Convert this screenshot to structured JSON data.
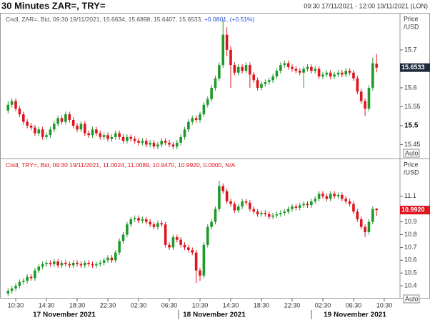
{
  "title": "30 Minutes ZAR=, TRY=",
  "date_range": "09:30 17/11/2021 - 12:00 19/11/2021 (LON)",
  "date_labels": [
    "17 November 2021",
    "18 November 2021",
    "19 November 2021"
  ],
  "chart_data": [
    {
      "type": "candlestick",
      "header": "Cndl, ZAR=, Bid, 09:30 19/11/2021, 15.6634, 15.6898, 15.6407, 15.6533, ",
      "header_change": "+0.0801, (+0.51%)",
      "axis_label": [
        "Price",
        "/USD"
      ],
      "auto_label": "Auto",
      "last_label": "15.6533",
      "up_color": "#1f9a2a",
      "down_color": "#e0141e",
      "tag_color": "#1e2a3c",
      "xlim": [
        8.45,
        60.55
      ],
      "ylim": [
        15.415,
        15.796
      ],
      "yticks": [
        15.45,
        15.5,
        15.55,
        15.6,
        15.7
      ],
      "x": [
        9.5,
        10,
        10.5,
        11,
        11.5,
        12,
        12.5,
        13,
        13.5,
        14,
        14.5,
        15,
        15.5,
        16,
        16.5,
        17,
        17.5,
        18,
        18.5,
        19,
        19.5,
        20,
        20.5,
        21,
        21.5,
        22,
        22.5,
        23,
        23.5,
        24,
        24.5,
        25,
        25.5,
        26,
        26.5,
        27,
        27.5,
        28,
        28.5,
        29,
        29.5,
        30,
        30.5,
        31,
        31.5,
        32,
        32.5,
        33,
        33.5,
        34,
        34.5,
        35,
        35.5,
        36,
        36.5,
        37,
        37.5,
        38,
        38.5,
        39,
        39.5,
        40,
        40.5,
        41,
        41.5,
        42,
        42.5,
        43,
        43.5,
        44,
        44.5,
        45,
        45.5,
        46,
        46.5,
        47,
        47.5,
        48,
        48.5,
        49,
        49.5,
        50,
        50.5,
        51,
        51.5,
        52,
        52.5,
        53,
        53.5,
        54,
        54.5,
        55,
        55.5,
        56,
        56.5,
        57,
        57.5
      ],
      "open": [
        15.54,
        15.555,
        15.565,
        15.545,
        15.53,
        15.51,
        15.5,
        15.495,
        15.48,
        15.49,
        15.47,
        15.475,
        15.49,
        15.505,
        15.52,
        15.51,
        15.53,
        15.515,
        15.5,
        15.49,
        15.505,
        15.48,
        15.475,
        15.49,
        15.48,
        15.47,
        15.475,
        15.465,
        15.47,
        15.48,
        15.47,
        15.46,
        15.47,
        15.465,
        15.46,
        15.455,
        15.46,
        15.45,
        15.455,
        15.445,
        15.45,
        15.46,
        15.455,
        15.45,
        15.445,
        15.455,
        15.47,
        15.49,
        15.51,
        15.52,
        15.515,
        15.53,
        15.555,
        15.57,
        15.6,
        15.625,
        15.66,
        15.74,
        15.7,
        15.66,
        15.64,
        15.655,
        15.645,
        15.66,
        15.635,
        15.62,
        15.6,
        15.61,
        15.615,
        15.62,
        15.63,
        15.645,
        15.66,
        15.665,
        15.655,
        15.65,
        15.645,
        15.64,
        15.65,
        15.655,
        15.645,
        15.65,
        15.63,
        15.635,
        15.64,
        15.63,
        15.635,
        15.64,
        15.635,
        15.645,
        15.64,
        15.625,
        15.59,
        15.565,
        15.545,
        15.6,
        15.6634
      ],
      "high": [
        15.565,
        15.572,
        15.572,
        15.552,
        15.537,
        15.517,
        15.507,
        15.502,
        15.497,
        15.497,
        15.482,
        15.497,
        15.512,
        15.527,
        15.527,
        15.537,
        15.537,
        15.522,
        15.507,
        15.512,
        15.512,
        15.487,
        15.497,
        15.497,
        15.487,
        15.482,
        15.482,
        15.477,
        15.487,
        15.487,
        15.477,
        15.477,
        15.477,
        15.472,
        15.467,
        15.467,
        15.467,
        15.462,
        15.462,
        15.457,
        15.467,
        15.467,
        15.462,
        15.457,
        15.462,
        15.477,
        15.497,
        15.517,
        15.527,
        15.527,
        15.537,
        15.562,
        15.577,
        15.607,
        15.632,
        15.667,
        15.78,
        15.76,
        15.71,
        15.667,
        15.662,
        15.662,
        15.667,
        15.667,
        15.642,
        15.627,
        15.617,
        15.622,
        15.627,
        15.637,
        15.652,
        15.667,
        15.672,
        15.672,
        15.662,
        15.657,
        15.652,
        15.657,
        15.662,
        15.662,
        15.657,
        15.657,
        15.642,
        15.647,
        15.647,
        15.642,
        15.647,
        15.647,
        15.652,
        15.652,
        15.647,
        15.632,
        15.597,
        15.572,
        15.607,
        15.68,
        15.6898
      ],
      "low": [
        15.533,
        15.548,
        15.538,
        15.523,
        15.503,
        15.493,
        15.488,
        15.473,
        15.473,
        15.463,
        15.463,
        15.468,
        15.483,
        15.498,
        15.503,
        15.503,
        15.508,
        15.493,
        15.483,
        15.483,
        15.473,
        15.468,
        15.468,
        15.473,
        15.463,
        15.463,
        15.458,
        15.458,
        15.463,
        15.463,
        15.453,
        15.453,
        15.458,
        15.453,
        15.448,
        15.448,
        15.443,
        15.443,
        15.438,
        15.438,
        15.443,
        15.448,
        15.443,
        15.438,
        15.438,
        15.448,
        15.463,
        15.483,
        15.503,
        15.508,
        15.508,
        15.523,
        15.548,
        15.563,
        15.593,
        15.618,
        15.653,
        15.683,
        15.6,
        15.633,
        15.633,
        15.638,
        15.638,
        15.6,
        15.613,
        15.593,
        15.593,
        15.603,
        15.608,
        15.613,
        15.623,
        15.638,
        15.653,
        15.648,
        15.643,
        15.638,
        15.633,
        15.6,
        15.643,
        15.638,
        15.638,
        15.623,
        15.623,
        15.628,
        15.623,
        15.623,
        15.628,
        15.628,
        15.628,
        15.633,
        15.618,
        15.583,
        15.558,
        15.525,
        15.538,
        15.593,
        15.6407
      ],
      "close": [
        15.555,
        15.565,
        15.545,
        15.53,
        15.51,
        15.5,
        15.495,
        15.48,
        15.49,
        15.47,
        15.475,
        15.49,
        15.505,
        15.52,
        15.51,
        15.53,
        15.515,
        15.5,
        15.49,
        15.505,
        15.48,
        15.475,
        15.49,
        15.48,
        15.47,
        15.475,
        15.465,
        15.47,
        15.48,
        15.47,
        15.46,
        15.47,
        15.465,
        15.46,
        15.455,
        15.46,
        15.45,
        15.455,
        15.445,
        15.45,
        15.46,
        15.455,
        15.45,
        15.445,
        15.455,
        15.47,
        15.49,
        15.51,
        15.52,
        15.515,
        15.53,
        15.555,
        15.57,
        15.6,
        15.625,
        15.66,
        15.74,
        15.7,
        15.66,
        15.64,
        15.655,
        15.645,
        15.66,
        15.635,
        15.62,
        15.6,
        15.61,
        15.615,
        15.62,
        15.63,
        15.645,
        15.66,
        15.665,
        15.655,
        15.65,
        15.645,
        15.64,
        15.65,
        15.655,
        15.645,
        15.65,
        15.63,
        15.635,
        15.64,
        15.63,
        15.635,
        15.64,
        15.635,
        15.645,
        15.64,
        15.625,
        15.59,
        15.565,
        15.545,
        15.6,
        15.665,
        15.6533
      ]
    },
    {
      "type": "candlestick",
      "header": "Cndl, TRY=, Bid, 09:30 19/11/2021, 11.0024, 11.0089, 10.9470, 10.9920, 0.0000, N/A",
      "axis_label": [
        "Price",
        "/USD"
      ],
      "auto_label": "Auto",
      "last_label": "10.9920",
      "up_color": "#1f9a2a",
      "down_color": "#e0141e",
      "tag_color": "#e0141e",
      "xlim": [
        8.45,
        60.55
      ],
      "ylim": [
        10.306,
        11.389
      ],
      "yticks": [
        10.4,
        10.5,
        10.6,
        10.7,
        10.8,
        10.9,
        11.1
      ],
      "xticks": [
        {
          "value": 10.5,
          "label": "10:30"
        },
        {
          "value": 14.5,
          "label": "14:30"
        },
        {
          "value": 18.5,
          "label": "18:30"
        },
        {
          "value": 22.5,
          "label": "22:30"
        },
        {
          "value": 26.5,
          "label": "02:30"
        },
        {
          "value": 30.5,
          "label": "06:30"
        },
        {
          "value": 34.5,
          "label": "10:30"
        },
        {
          "value": 38.5,
          "label": "14:30"
        },
        {
          "value": 42.5,
          "label": "18:30"
        },
        {
          "value": 46.5,
          "label": "22:30"
        },
        {
          "value": 50.5,
          "label": "02:30"
        },
        {
          "value": 54.5,
          "label": "06:30"
        },
        {
          "value": 58.5,
          "label": "10:30"
        }
      ],
      "x": [
        9.5,
        10,
        10.5,
        11,
        11.5,
        12,
        12.5,
        13,
        13.5,
        14,
        14.5,
        15,
        15.5,
        16,
        16.5,
        17,
        17.5,
        18,
        18.5,
        19,
        19.5,
        20,
        20.5,
        21,
        21.5,
        22,
        22.5,
        23,
        23.5,
        24,
        24.5,
        25,
        25.5,
        26,
        26.5,
        27,
        27.5,
        28,
        28.5,
        29,
        29.5,
        30,
        30.5,
        31,
        31.5,
        32,
        32.5,
        33,
        33.5,
        34,
        34.5,
        35,
        35.5,
        36,
        36.5,
        37,
        37.5,
        38,
        38.5,
        39,
        39.5,
        40,
        40.5,
        41,
        41.5,
        42,
        42.5,
        43,
        43.5,
        44,
        44.5,
        45,
        45.5,
        46,
        46.5,
        47,
        47.5,
        48,
        48.5,
        49,
        49.5,
        50,
        50.5,
        51,
        51.5,
        52,
        52.5,
        53,
        53.5,
        54,
        54.5,
        55,
        55.5,
        56,
        56.5,
        57,
        57.5
      ],
      "open": [
        10.34,
        10.36,
        10.38,
        10.4,
        10.43,
        10.44,
        10.47,
        10.46,
        10.52,
        10.55,
        10.57,
        10.58,
        10.57,
        10.59,
        10.56,
        10.58,
        10.57,
        10.56,
        10.58,
        10.57,
        10.56,
        10.58,
        10.57,
        10.56,
        10.57,
        10.58,
        10.6,
        10.62,
        10.6,
        10.66,
        10.75,
        10.8,
        10.88,
        10.92,
        10.93,
        10.91,
        10.92,
        10.9,
        10.88,
        10.86,
        10.89,
        10.88,
        10.72,
        10.7,
        10.78,
        10.76,
        10.72,
        10.7,
        10.68,
        10.66,
        10.52,
        10.48,
        10.72,
        10.86,
        10.9,
        11,
        11.18,
        11.14,
        11.06,
        11.04,
        10.99,
        11.02,
        11.06,
        11.05,
        11,
        10.98,
        10.96,
        10.97,
        10.96,
        10.94,
        10.95,
        10.96,
        10.97,
        10.98,
        11,
        11.02,
        11.01,
        11.03,
        11.04,
        11.03,
        11.06,
        11.08,
        11.12,
        11.1,
        11.08,
        11.12,
        11.1,
        11.11,
        11.08,
        11.06,
        11.04,
        10.98,
        10.92,
        10.86,
        10.82,
        10.9,
        11.0024
      ],
      "high": [
        10.38,
        10.4,
        10.42,
        10.45,
        10.46,
        10.49,
        10.49,
        10.54,
        10.57,
        10.59,
        10.6,
        10.6,
        10.61,
        10.61,
        10.6,
        10.6,
        10.59,
        10.6,
        10.6,
        10.59,
        10.6,
        10.6,
        10.59,
        10.59,
        10.6,
        10.62,
        10.64,
        10.64,
        10.68,
        10.77,
        10.82,
        10.9,
        10.94,
        10.95,
        10.95,
        10.94,
        10.94,
        10.92,
        10.9,
        10.91,
        10.91,
        10.9,
        10.74,
        10.8,
        10.8,
        10.78,
        10.74,
        10.72,
        10.7,
        10.68,
        10.54,
        10.74,
        10.88,
        10.92,
        11.02,
        11.22,
        11.2,
        11.16,
        11.08,
        11.06,
        11.04,
        11.08,
        11.08,
        11.07,
        11.02,
        11,
        10.99,
        10.99,
        10.98,
        10.97,
        10.98,
        10.99,
        11,
        11.02,
        11.04,
        11.04,
        11.05,
        11.06,
        11.06,
        11.08,
        11.1,
        11.14,
        11.14,
        11.12,
        11.14,
        11.14,
        11.13,
        11.13,
        11.1,
        11.08,
        11.06,
        11,
        10.94,
        10.88,
        10.92,
        11.02,
        11.0089
      ],
      "low": [
        10.32,
        10.34,
        10.36,
        10.38,
        10.41,
        10.42,
        10.44,
        10.44,
        10.5,
        10.53,
        10.55,
        10.55,
        10.55,
        10.54,
        10.54,
        10.55,
        10.54,
        10.54,
        10.55,
        10.54,
        10.54,
        10.55,
        10.54,
        10.54,
        10.55,
        10.56,
        10.58,
        10.58,
        10.58,
        10.64,
        10.73,
        10.78,
        10.86,
        10.9,
        10.89,
        10.89,
        10.88,
        10.86,
        10.84,
        10.84,
        10.86,
        10.7,
        10.68,
        10.68,
        10.74,
        10.7,
        10.68,
        10.66,
        10.64,
        10.42,
        10.44,
        10.46,
        10.7,
        10.84,
        10.88,
        10.98,
        11.12,
        11.04,
        11.02,
        10.97,
        10.97,
        11,
        11.03,
        10.98,
        10.96,
        10.94,
        10.94,
        10.94,
        10.92,
        10.92,
        10.93,
        10.94,
        10.95,
        10.96,
        10.98,
        10.99,
        10.99,
        11.01,
        11.01,
        11.01,
        11.04,
        11.06,
        11.08,
        11.06,
        11.06,
        11.08,
        11.08,
        11.06,
        11.04,
        11.02,
        10.96,
        10.9,
        10.84,
        10.78,
        10.8,
        10.88,
        10.947
      ],
      "close": [
        10.36,
        10.38,
        10.4,
        10.43,
        10.44,
        10.47,
        10.46,
        10.52,
        10.55,
        10.57,
        10.58,
        10.57,
        10.59,
        10.56,
        10.58,
        10.57,
        10.56,
        10.58,
        10.57,
        10.56,
        10.58,
        10.57,
        10.56,
        10.57,
        10.58,
        10.6,
        10.62,
        10.6,
        10.66,
        10.75,
        10.8,
        10.88,
        10.92,
        10.93,
        10.91,
        10.92,
        10.9,
        10.88,
        10.86,
        10.89,
        10.88,
        10.72,
        10.7,
        10.78,
        10.76,
        10.72,
        10.7,
        10.68,
        10.66,
        10.52,
        10.48,
        10.72,
        10.86,
        10.9,
        11,
        11.18,
        11.14,
        11.06,
        11.04,
        10.99,
        11.02,
        11.06,
        11.05,
        11,
        10.98,
        10.96,
        10.97,
        10.96,
        10.94,
        10.95,
        10.96,
        10.97,
        10.98,
        11,
        11.02,
        11.01,
        11.03,
        11.04,
        11.03,
        11.06,
        11.08,
        11.12,
        11.1,
        11.08,
        11.12,
        11.1,
        11.11,
        11.08,
        11.06,
        11.04,
        10.98,
        10.92,
        10.86,
        10.82,
        10.9,
        11,
        10.992
      ]
    }
  ]
}
